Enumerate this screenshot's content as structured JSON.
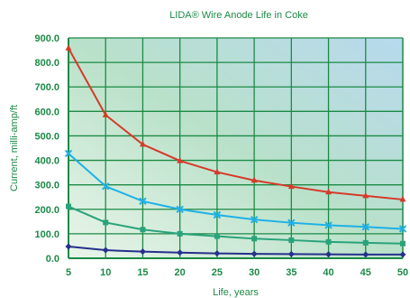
{
  "chart_data": {
    "type": "line",
    "title": "LIDA® Wire Anode Life in Coke",
    "xlabel": "Life, years",
    "ylabel": "Current, milli-amp/ft",
    "x": [
      5,
      10,
      15,
      20,
      25,
      30,
      35,
      40,
      45,
      50
    ],
    "x_tick_labels": [
      "5",
      "10",
      "15",
      "20",
      "25",
      "30",
      "35",
      "40",
      "45",
      "50"
    ],
    "y_tick_labels": [
      "0.0",
      "100.0",
      "200.0",
      "300.0",
      "400.0",
      "500.0",
      "600.0",
      "700.0",
      "800.0",
      "900.0"
    ],
    "xlim": [
      5,
      50
    ],
    "ylim": [
      0,
      900
    ],
    "grid": true,
    "legend": "none",
    "series": [
      {
        "color": "#d63a2a",
        "marker": "triangle",
        "values": [
          858,
          585,
          465,
          398,
          352,
          318,
          293,
          270,
          255,
          240
        ]
      },
      {
        "color": "#1fb1e6",
        "marker": "x",
        "values": [
          428,
          294,
          233,
          200,
          177,
          158,
          145,
          135,
          128,
          120
        ]
      },
      {
        "color": "#2aa37b",
        "marker": "square",
        "values": [
          212,
          146,
          117,
          100,
          90,
          80,
          74,
          67,
          63,
          60
        ]
      },
      {
        "color": "#27308c",
        "marker": "diamond",
        "values": [
          48,
          33,
          27,
          23,
          20,
          18,
          17,
          16,
          15,
          15
        ]
      }
    ]
  },
  "colors": {
    "grid": "#1c8a46",
    "text": "#1c8a46",
    "plot_gradient_start": "#e9f5ea",
    "plot_gradient_mid": "#b9e1c9",
    "plot_gradient_end": "#b7d9ee"
  }
}
